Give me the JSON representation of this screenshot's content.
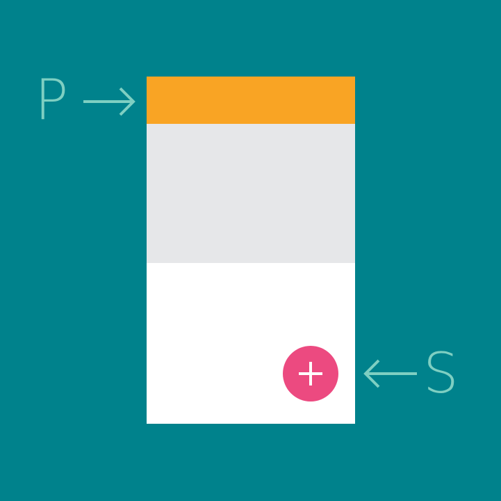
{
  "labels": {
    "primary": "P",
    "secondary": "S"
  },
  "colors": {
    "background": "#00828C",
    "primary": "#F9A424",
    "secondary": "#EC4A80",
    "surface": "#FFFFFF",
    "content": "#E6E7E9",
    "annotation": "#7ECFC2"
  },
  "icons": {
    "fab_icon": "plus-icon",
    "pointer_right": "arrow-right-icon",
    "pointer_left": "arrow-left-icon"
  }
}
